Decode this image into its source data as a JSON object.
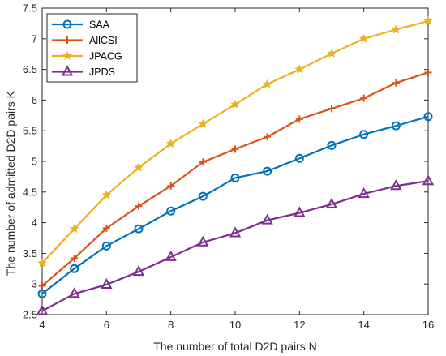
{
  "chart_data": {
    "type": "line",
    "title": "",
    "xlabel": "The number of total D2D pairs N",
    "ylabel": "The number of admitted D2D pairs K",
    "xlim": [
      4,
      16
    ],
    "ylim": [
      2.5,
      7.5
    ],
    "xticks": [
      "4",
      "6",
      "8",
      "10",
      "12",
      "14",
      "16"
    ],
    "yticks": [
      "2.5",
      "3",
      "3.5",
      "4",
      "4.5",
      "5",
      "5.5",
      "6",
      "6.5",
      "7",
      "7.5"
    ],
    "grid": false,
    "legend_position": "top-left",
    "x": [
      4,
      5,
      6,
      7,
      8,
      9,
      10,
      11,
      12,
      13,
      14,
      15,
      16
    ],
    "series": [
      {
        "name": "SAA",
        "color": "#0072BD",
        "marker": "circle",
        "values": [
          2.84,
          3.25,
          3.62,
          3.9,
          4.19,
          4.43,
          4.73,
          4.84,
          5.05,
          5.26,
          5.44,
          5.58,
          5.73
        ]
      },
      {
        "name": "AllCSI",
        "color": "#D95319",
        "marker": "plus",
        "values": [
          2.97,
          3.42,
          3.91,
          4.27,
          4.6,
          4.99,
          5.2,
          5.4,
          5.69,
          5.86,
          6.03,
          6.28,
          6.45
        ]
      },
      {
        "name": "JPACG",
        "color": "#EDB120",
        "marker": "star",
        "values": [
          3.34,
          3.9,
          4.45,
          4.9,
          5.29,
          5.61,
          5.93,
          6.26,
          6.5,
          6.76,
          7.0,
          7.15,
          7.29
        ]
      },
      {
        "name": "JPDS",
        "color": "#7E2F8E",
        "marker": "triangle",
        "values": [
          2.56,
          2.84,
          2.99,
          3.2,
          3.44,
          3.68,
          3.83,
          4.04,
          4.16,
          4.3,
          4.47,
          4.6,
          4.68
        ]
      }
    ]
  }
}
